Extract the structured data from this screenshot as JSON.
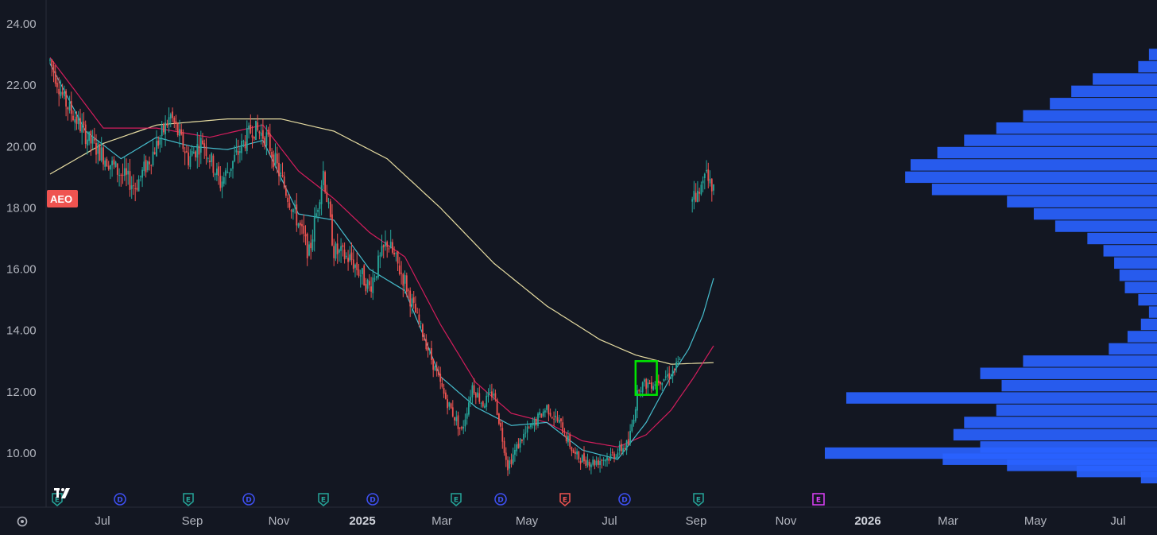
{
  "chart_data": {
    "type": "candlestick",
    "symbol": "AEO",
    "y_ticks": [
      "24.00",
      "22.00",
      "20.00",
      "18.00",
      "16.00",
      "14.00",
      "12.00",
      "10.00"
    ],
    "x_ticks": [
      {
        "label": "Jul",
        "bold": false
      },
      {
        "label": "Sep",
        "bold": false
      },
      {
        "label": "Nov",
        "bold": false
      },
      {
        "label": "2025",
        "bold": true
      },
      {
        "label": "Mar",
        "bold": false
      },
      {
        "label": "May",
        "bold": false
      },
      {
        "label": "Jul",
        "bold": false
      },
      {
        "label": "Sep",
        "bold": false
      },
      {
        "label": "Nov",
        "bold": false
      },
      {
        "label": "2026",
        "bold": true
      },
      {
        "label": "Mar",
        "bold": false
      },
      {
        "label": "May",
        "bold": false
      },
      {
        "label": "Jul",
        "bold": false
      }
    ],
    "ylim": [
      9.0,
      24.5
    ],
    "colors": {
      "up": "#26a69a",
      "down": "#ef5350",
      "ma_fast": "#4dd0e1",
      "ma_mid": "#e91e63",
      "ma_slow": "#fff3b0",
      "volume_profile": "#2962ff",
      "highlight_box": "#00e600",
      "symbol_badge": "#ef5350"
    },
    "events": [
      {
        "letter": "E",
        "kind": "earnings"
      },
      {
        "letter": "D",
        "kind": "dividend"
      },
      {
        "letter": "E",
        "kind": "earnings"
      },
      {
        "letter": "D",
        "kind": "dividend"
      },
      {
        "letter": "E",
        "kind": "earnings"
      },
      {
        "letter": "D",
        "kind": "dividend"
      },
      {
        "letter": "E",
        "kind": "earnings"
      },
      {
        "letter": "D",
        "kind": "dividend"
      },
      {
        "letter": "E",
        "kind": "earnings-neg"
      },
      {
        "letter": "D",
        "kind": "dividend"
      },
      {
        "letter": "E",
        "kind": "earnings"
      },
      {
        "letter": "E",
        "kind": "earnings-future"
      }
    ],
    "price_path": [
      [
        0,
        22.8
      ],
      [
        8,
        21.5
      ],
      [
        22,
        20.2
      ],
      [
        38,
        19.2
      ],
      [
        48,
        18.7
      ],
      [
        58,
        19.8
      ],
      [
        68,
        21.0
      ],
      [
        78,
        19.6
      ],
      [
        86,
        20.2
      ],
      [
        96,
        18.8
      ],
      [
        104,
        19.6
      ],
      [
        114,
        20.6
      ],
      [
        122,
        20.3
      ],
      [
        130,
        19.0
      ],
      [
        140,
        17.5
      ],
      [
        146,
        16.5
      ],
      [
        150,
        17.8
      ],
      [
        154,
        19.2
      ],
      [
        160,
        16.6
      ],
      [
        170,
        16.3
      ],
      [
        180,
        15.4
      ],
      [
        190,
        16.9
      ],
      [
        200,
        15.6
      ],
      [
        210,
        13.9
      ],
      [
        222,
        11.9
      ],
      [
        232,
        10.7
      ],
      [
        238,
        12.2
      ],
      [
        244,
        11.6
      ],
      [
        250,
        12.0
      ],
      [
        258,
        9.6
      ],
      [
        266,
        10.5
      ],
      [
        272,
        10.9
      ],
      [
        280,
        11.5
      ],
      [
        288,
        10.9
      ],
      [
        296,
        9.9
      ],
      [
        306,
        9.7
      ],
      [
        316,
        9.9
      ],
      [
        326,
        10.3
      ],
      [
        332,
        12.2
      ],
      [
        340,
        12.3
      ],
      [
        350,
        12.6
      ],
      [
        358,
        13.2
      ],
      [
        362,
        18.5
      ],
      [
        366,
        18.3
      ],
      [
        370,
        19.4
      ],
      [
        374,
        18.5
      ]
    ],
    "moving_averages": {
      "fast": [
        [
          0,
          22.7
        ],
        [
          20,
          20.5
        ],
        [
          40,
          19.6
        ],
        [
          60,
          20.3
        ],
        [
          80,
          20.0
        ],
        [
          100,
          19.9
        ],
        [
          120,
          20.2
        ],
        [
          140,
          17.8
        ],
        [
          160,
          17.6
        ],
        [
          180,
          16.0
        ],
        [
          200,
          15.3
        ],
        [
          220,
          12.5
        ],
        [
          240,
          11.5
        ],
        [
          260,
          10.9
        ],
        [
          280,
          11.0
        ],
        [
          300,
          10.1
        ],
        [
          320,
          9.8
        ],
        [
          336,
          11.0
        ],
        [
          350,
          12.5
        ],
        [
          360,
          13.4
        ],
        [
          368,
          14.5
        ],
        [
          374,
          15.7
        ]
      ],
      "mid": [
        [
          0,
          22.9
        ],
        [
          30,
          20.6
        ],
        [
          60,
          20.6
        ],
        [
          90,
          20.3
        ],
        [
          120,
          20.7
        ],
        [
          140,
          19.2
        ],
        [
          160,
          18.3
        ],
        [
          180,
          17.2
        ],
        [
          200,
          16.4
        ],
        [
          220,
          14.2
        ],
        [
          240,
          12.3
        ],
        [
          260,
          11.3
        ],
        [
          280,
          11.0
        ],
        [
          300,
          10.4
        ],
        [
          320,
          10.2
        ],
        [
          336,
          10.6
        ],
        [
          350,
          11.4
        ],
        [
          362,
          12.4
        ],
        [
          374,
          13.5
        ]
      ],
      "slow": [
        [
          0,
          19.1
        ],
        [
          30,
          20.1
        ],
        [
          60,
          20.7
        ],
        [
          100,
          20.9
        ],
        [
          130,
          20.9
        ],
        [
          160,
          20.5
        ],
        [
          190,
          19.6
        ],
        [
          220,
          18.0
        ],
        [
          250,
          16.2
        ],
        [
          280,
          14.8
        ],
        [
          310,
          13.7
        ],
        [
          330,
          13.2
        ],
        [
          350,
          12.9
        ],
        [
          374,
          12.95
        ]
      ]
    },
    "highlight_range": {
      "x_from": 330,
      "x_to": 342,
      "y_low": 11.9,
      "y_high": 13.0
    },
    "volume_profile": [
      [
        23.0,
        15
      ],
      [
        22.6,
        35
      ],
      [
        22.2,
        120
      ],
      [
        21.8,
        160
      ],
      [
        21.4,
        200
      ],
      [
        21.0,
        250
      ],
      [
        20.6,
        300
      ],
      [
        20.2,
        360
      ],
      [
        19.8,
        410
      ],
      [
        19.4,
        460
      ],
      [
        19.0,
        470
      ],
      [
        18.6,
        420
      ],
      [
        18.2,
        280
      ],
      [
        17.8,
        230
      ],
      [
        17.4,
        190
      ],
      [
        17.0,
        130
      ],
      [
        16.6,
        100
      ],
      [
        16.2,
        80
      ],
      [
        15.8,
        70
      ],
      [
        15.4,
        60
      ],
      [
        15.0,
        35
      ],
      [
        14.6,
        15
      ],
      [
        14.2,
        30
      ],
      [
        13.8,
        55
      ],
      [
        13.4,
        90
      ],
      [
        13.0,
        250
      ],
      [
        12.6,
        330
      ],
      [
        12.2,
        290
      ],
      [
        11.8,
        580
      ],
      [
        11.4,
        300
      ],
      [
        11.0,
        360
      ],
      [
        10.6,
        380
      ],
      [
        10.2,
        330
      ],
      [
        10.0,
        620
      ],
      [
        9.8,
        400
      ],
      [
        9.6,
        280
      ],
      [
        9.4,
        150
      ],
      [
        9.2,
        30
      ]
    ]
  }
}
